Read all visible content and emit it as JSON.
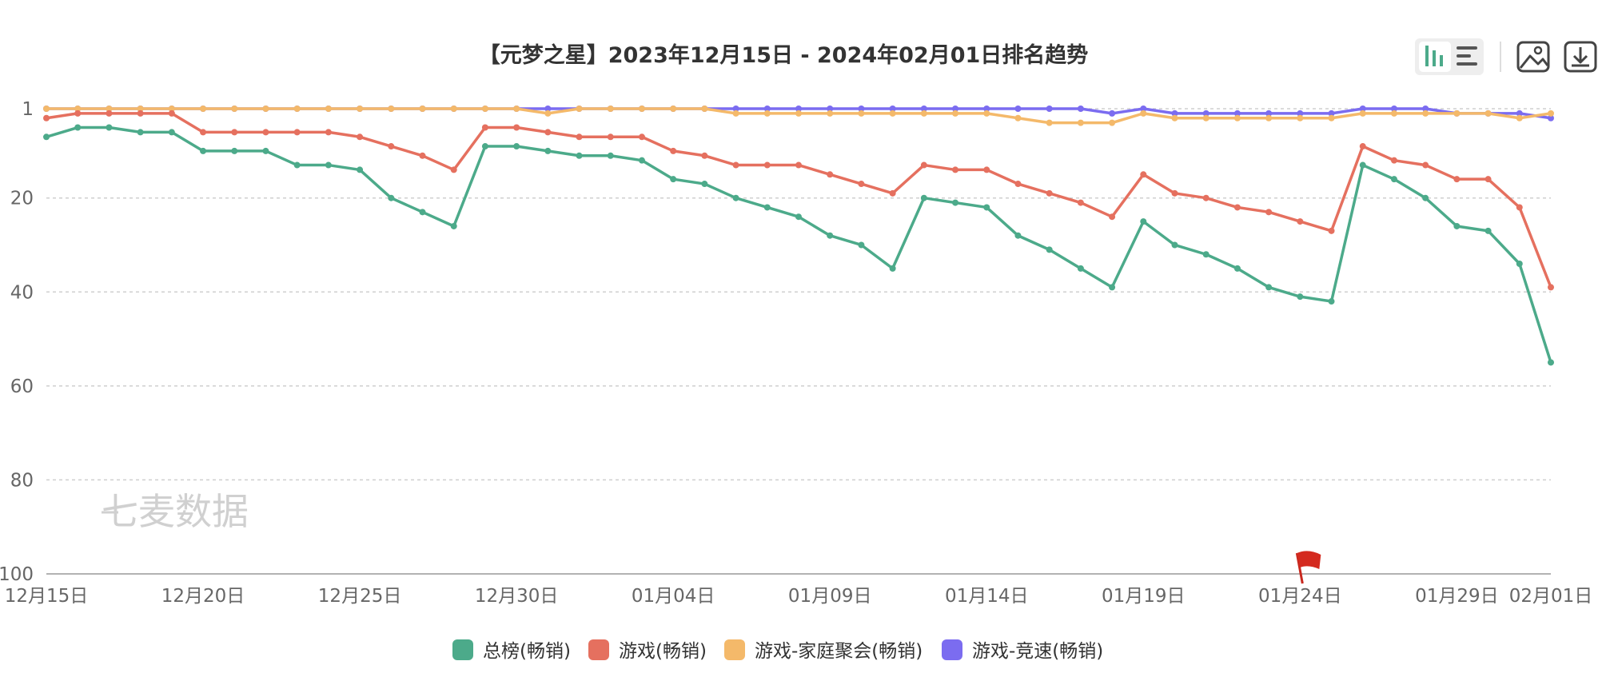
{
  "watermark": "七麦数据",
  "toolbar": {
    "chart_view_icon": "bar-chart-icon",
    "list_view_icon": "list-icon",
    "image_icon": "image-icon",
    "download_icon": "download-icon"
  },
  "chart_data": {
    "type": "line",
    "title": "【元梦之星】2023年12月15日 - 2024年02月01日排名趋势",
    "xlabel": "",
    "ylabel": "",
    "y_inverted": true,
    "ylim": [
      1,
      100
    ],
    "y_ticks": [
      1,
      20,
      40,
      60,
      80,
      100
    ],
    "grid": true,
    "legend_position": "bottom",
    "x": [
      "12月15日",
      "12月16日",
      "12月17日",
      "12月18日",
      "12月19日",
      "12月20日",
      "12月21日",
      "12月22日",
      "12月23日",
      "12月24日",
      "12月25日",
      "12月26日",
      "12月27日",
      "12月28日",
      "12月29日",
      "12月30日",
      "12月31日",
      "01月01日",
      "01月02日",
      "01月03日",
      "01月04日",
      "01月05日",
      "01月06日",
      "01月07日",
      "01月08日",
      "01月09日",
      "01月10日",
      "01月11日",
      "01月12日",
      "01月13日",
      "01月14日",
      "01月15日",
      "01月16日",
      "01月17日",
      "01月18日",
      "01月19日",
      "01月20日",
      "01月21日",
      "01月22日",
      "01月23日",
      "01月24日",
      "01月25日",
      "01月26日",
      "01月27日",
      "01月28日",
      "01月29日",
      "01月30日",
      "01月31日",
      "02月01日"
    ],
    "x_tick_labels": [
      "12月15日",
      "12月20日",
      "12月25日",
      "12月30日",
      "01月04日",
      "01月09日",
      "01月14日",
      "01月19日",
      "01月24日",
      "01月29日",
      "02月01日"
    ],
    "flag_date": "01月24日",
    "series": [
      {
        "name": "总榜(畅销)",
        "color": "#4caa8a",
        "values": [
          7,
          5,
          5,
          6,
          6,
          10,
          10,
          10,
          13,
          13,
          14,
          20,
          23,
          26,
          9,
          9,
          10,
          11,
          11,
          12,
          16,
          17,
          20,
          22,
          24,
          28,
          30,
          35,
          20,
          21,
          22,
          28,
          31,
          35,
          39,
          25,
          30,
          32,
          35,
          39,
          41,
          42,
          13,
          16,
          20,
          26,
          27,
          34,
          55
        ]
      },
      {
        "name": "游戏(畅销)",
        "color": "#e5705f",
        "values": [
          3,
          2,
          2,
          2,
          2,
          6,
          6,
          6,
          6,
          6,
          7,
          9,
          11,
          14,
          5,
          5,
          6,
          7,
          7,
          7,
          10,
          11,
          13,
          13,
          13,
          15,
          17,
          19,
          13,
          14,
          14,
          17,
          19,
          21,
          24,
          15,
          19,
          20,
          22,
          23,
          25,
          27,
          9,
          12,
          13,
          16,
          16,
          22,
          39
        ]
      },
      {
        "name": "游戏-家庭聚会(畅销)",
        "color": "#f4b96a",
        "values": [
          1,
          1,
          1,
          1,
          1,
          1,
          1,
          1,
          1,
          1,
          1,
          1,
          1,
          1,
          1,
          1,
          2,
          1,
          1,
          1,
          1,
          1,
          2,
          2,
          2,
          2,
          2,
          2,
          2,
          2,
          2,
          3,
          4,
          4,
          4,
          2,
          3,
          3,
          3,
          3,
          3,
          3,
          2,
          2,
          2,
          2,
          2,
          3,
          2
        ]
      },
      {
        "name": "游戏-竞速(畅销)",
        "color": "#7b6cf0",
        "values": [
          1,
          1,
          1,
          1,
          1,
          1,
          1,
          1,
          1,
          1,
          1,
          1,
          1,
          1,
          1,
          1,
          1,
          1,
          1,
          1,
          1,
          1,
          1,
          1,
          1,
          1,
          1,
          1,
          1,
          1,
          1,
          1,
          1,
          1,
          2,
          1,
          2,
          2,
          2,
          2,
          2,
          2,
          1,
          1,
          1,
          2,
          2,
          2,
          3
        ]
      }
    ]
  }
}
